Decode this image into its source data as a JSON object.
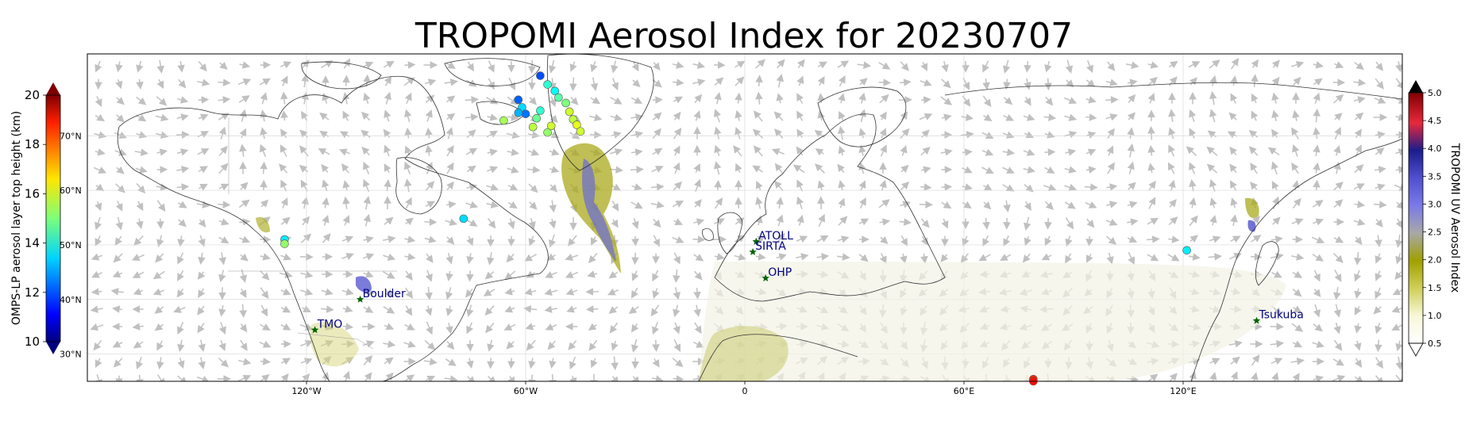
{
  "chart_data": {
    "type": "scatter",
    "title": "TROPOMI Aerosol Index for 20230707",
    "map": {
      "projection": "PlateCarree",
      "lon_range": [
        -180,
        180
      ],
      "lat_range": [
        25,
        85
      ],
      "x_ticks": [
        "120°W",
        "60°W",
        "0",
        "60°E",
        "120°E"
      ],
      "x_tick_values": [
        -120,
        -60,
        0,
        60,
        120
      ],
      "lat_labels": [
        "70°N",
        "60°N",
        "50°N",
        "40°N",
        "30°N"
      ],
      "lat_label_values": [
        70,
        60,
        50,
        40,
        30
      ],
      "grid": true
    },
    "left_colorbar": {
      "label": "OMPS-LP aerosol layer top height (km)",
      "ticks": [
        "10",
        "12",
        "14",
        "16",
        "18",
        "20"
      ],
      "range": [
        10,
        20
      ],
      "colormap": "jet",
      "extend": "both"
    },
    "right_colorbar": {
      "label": "TROPOMI UV Aerosol Index",
      "ticks": [
        "0.5",
        "1.0",
        "1.5",
        "2.0",
        "2.5",
        "3.0",
        "3.5",
        "4.0",
        "4.5",
        "5.0"
      ],
      "range": [
        0.5,
        5.0
      ],
      "extend": "both"
    },
    "sites": [
      {
        "name": "ATOLL",
        "lon": 3.1,
        "lat": 50.6
      },
      {
        "name": "SIRTA",
        "lon": 2.2,
        "lat": 48.7
      },
      {
        "name": "OHP",
        "lon": 5.7,
        "lat": 43.9
      },
      {
        "name": "Boulder",
        "lon": -105.3,
        "lat": 40.0
      },
      {
        "name": "TMO",
        "lon": -117.7,
        "lat": 34.4
      },
      {
        "name": "Tsukuba",
        "lon": 140.1,
        "lat": 36.1
      }
    ],
    "omps_points": [
      {
        "lon": -56,
        "lat": 81.0,
        "height": 12.0
      },
      {
        "lon": -54,
        "lat": 79.4,
        "height": 14.2
      },
      {
        "lon": -52,
        "lat": 78.2,
        "height": 13.8
      },
      {
        "lon": -51,
        "lat": 77.0,
        "height": 14.6
      },
      {
        "lon": -62,
        "lat": 76.6,
        "height": 12.2
      },
      {
        "lon": -49,
        "lat": 76.0,
        "height": 15.0
      },
      {
        "lon": -61,
        "lat": 75.2,
        "height": 13.4
      },
      {
        "lon": -56,
        "lat": 74.6,
        "height": 14.2
      },
      {
        "lon": -48,
        "lat": 74.4,
        "height": 15.8
      },
      {
        "lon": -60,
        "lat": 74.0,
        "height": 12.4
      },
      {
        "lon": -62,
        "lat": 74.2,
        "height": 13.0
      },
      {
        "lon": -47,
        "lat": 73.0,
        "height": 15.6
      },
      {
        "lon": -66,
        "lat": 72.8,
        "height": 15.4
      },
      {
        "lon": -57,
        "lat": 73.2,
        "height": 14.8
      },
      {
        "lon": -46,
        "lat": 72.0,
        "height": 16.0
      },
      {
        "lon": -53,
        "lat": 71.8,
        "height": 15.8
      },
      {
        "lon": -58,
        "lat": 71.6,
        "height": 15.6
      },
      {
        "lon": -45,
        "lat": 70.8,
        "height": 15.8
      },
      {
        "lon": -54,
        "lat": 70.6,
        "height": 15.2
      },
      {
        "lon": -77,
        "lat": 54.8,
        "height": 13.4
      },
      {
        "lon": -126,
        "lat": 51.0,
        "height": 13.6
      },
      {
        "lon": -126,
        "lat": 50.2,
        "height": 15.2
      },
      {
        "lon": 121,
        "lat": 49.0,
        "height": 13.6
      },
      {
        "lon": 79,
        "lat": 25.4,
        "height": 18.4
      },
      {
        "lon": 79,
        "lat": 25.0,
        "height": 18.6
      }
    ]
  }
}
